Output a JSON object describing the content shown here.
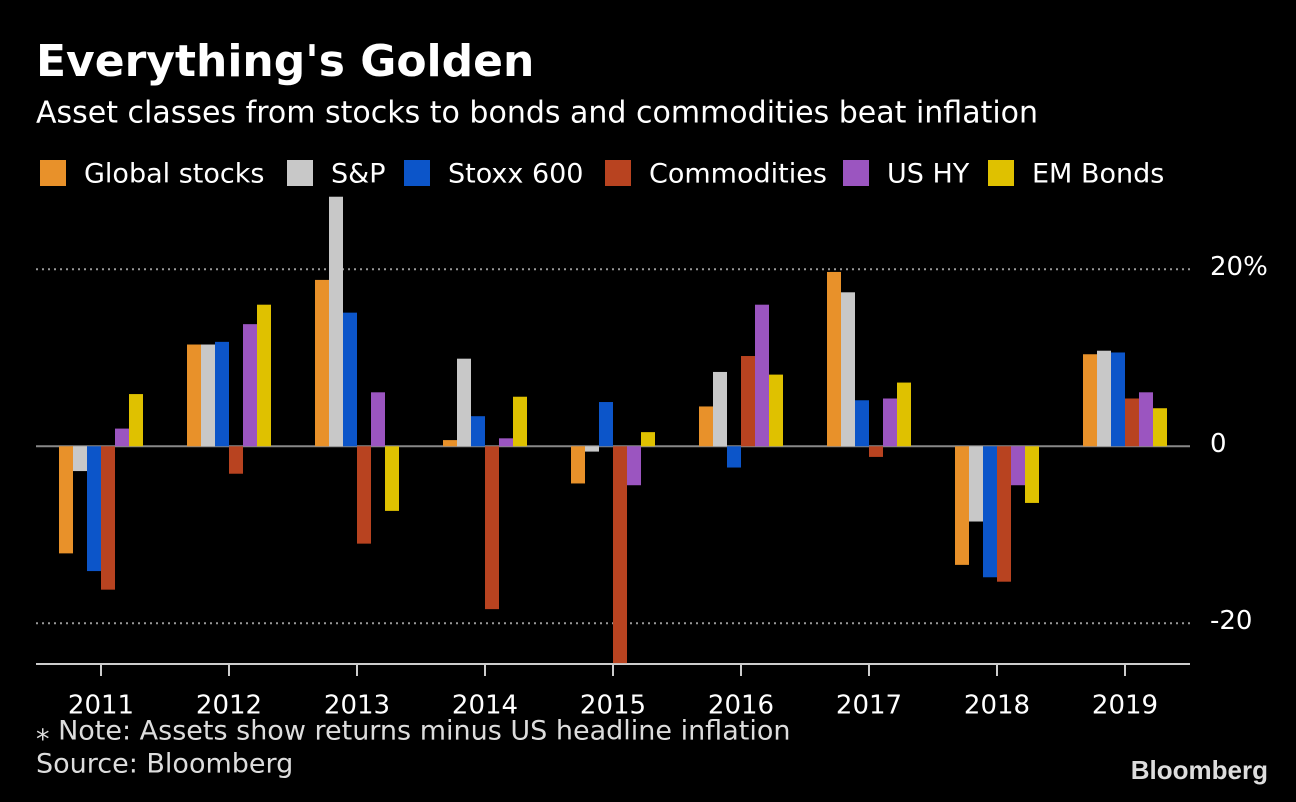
{
  "chart_data": {
    "type": "bar",
    "title": "Everything's Golden",
    "subtitle": "Asset classes from stocks to bonds and commodities beat inflation",
    "note": "⁎ Note: Assets show returns minus US headline inflation",
    "source": "Source: Bloomberg",
    "brand": "Bloomberg",
    "categories": [
      "2011",
      "2012",
      "2013",
      "2014",
      "2015",
      "2016",
      "2017",
      "2018",
      "2019"
    ],
    "series": [
      {
        "name": "Global stocks",
        "color": "#e8912a",
        "values": [
          -12.1,
          11.5,
          18.8,
          0.7,
          -4.2,
          4.5,
          19.7,
          -13.4,
          10.4
        ]
      },
      {
        "name": "S&P",
        "color": "#c8c8c8",
        "values": [
          -2.8,
          11.5,
          28.2,
          9.9,
          -0.6,
          8.4,
          17.4,
          -8.5,
          10.8
        ]
      },
      {
        "name": "Stoxx 600",
        "color": "#0c55c9",
        "values": [
          -14.1,
          11.8,
          15.1,
          3.4,
          5.0,
          -2.4,
          5.2,
          -14.8,
          10.6
        ]
      },
      {
        "name": "Commodities",
        "color": "#b84320",
        "values": [
          -16.2,
          -3.1,
          -11.0,
          -18.4,
          -24.5,
          10.2,
          -1.2,
          -15.3,
          5.4
        ]
      },
      {
        "name": "US HY",
        "color": "#9b55c0",
        "values": [
          2.0,
          13.8,
          6.1,
          0.9,
          -4.4,
          16.0,
          5.4,
          -4.4,
          6.1
        ]
      },
      {
        "name": "EM Bonds",
        "color": "#dfc100",
        "values": [
          5.9,
          16.0,
          -7.3,
          5.6,
          1.6,
          8.1,
          7.2,
          -6.4,
          4.3
        ]
      }
    ],
    "ylim": [
      -24.6,
      28.5
    ],
    "yticks": [
      {
        "value": 20,
        "label": "20%"
      },
      0,
      -20
    ],
    "grid": true
  }
}
